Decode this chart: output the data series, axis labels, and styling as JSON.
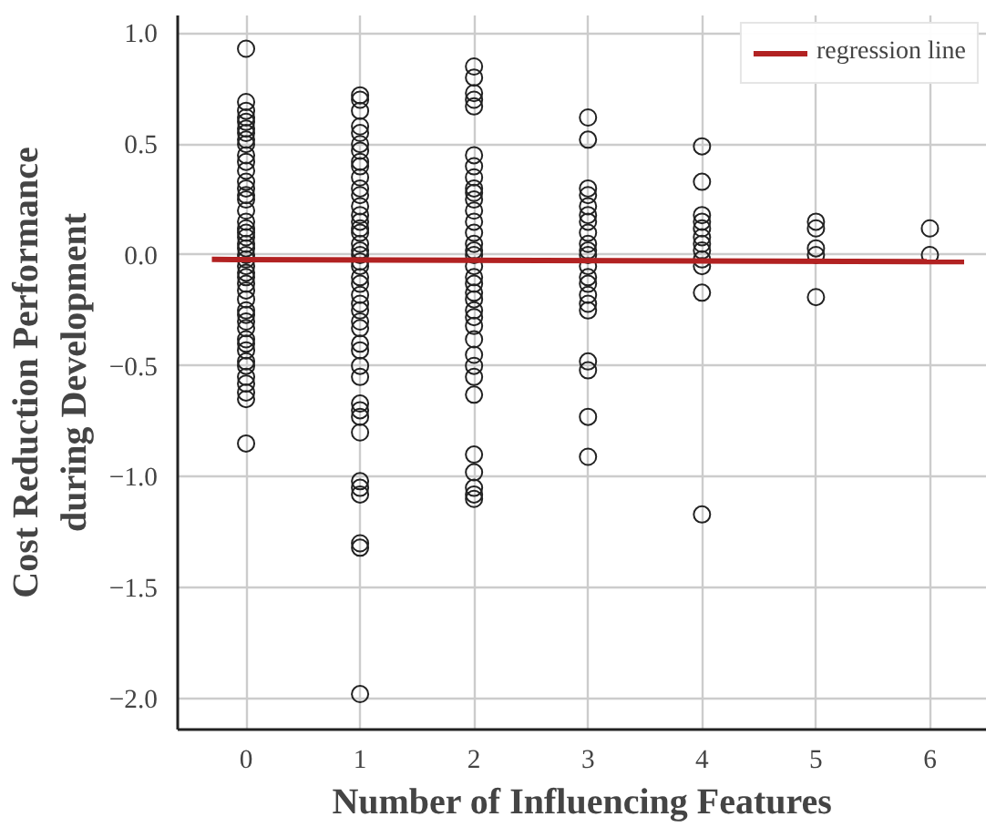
{
  "chart_data": {
    "type": "scatter",
    "xlabel": "Number of Influencing Features",
    "ylabel": "Cost Reduction Performance\nduring Development",
    "xlim": [
      -0.6,
      6.5
    ],
    "ylim": [
      -2.14,
      1.08
    ],
    "xticks": [
      0,
      1,
      2,
      3,
      4,
      5,
      6
    ],
    "yticks": [
      {
        "value": -2,
        "label": "−2.0"
      },
      {
        "value": -1.5,
        "label": "−1.5"
      },
      {
        "value": -1,
        "label": "−1.0"
      },
      {
        "value": -0.5,
        "label": "−0.5"
      },
      {
        "value": 0,
        "label": "0.0"
      },
      {
        "value": 0.5,
        "label": "0.5"
      },
      {
        "value": 1,
        "label": "1.0"
      }
    ],
    "grid": true,
    "legend": "top right",
    "series": [
      {
        "marker": "circle",
        "color": "#222222",
        "x": [
          0,
          0,
          0,
          0,
          0,
          0,
          0,
          0,
          0,
          0,
          0,
          0,
          0,
          0,
          0,
          0,
          0,
          0,
          0,
          0,
          0,
          0,
          0,
          0,
          0,
          0,
          0,
          0,
          0,
          0,
          0,
          0,
          0,
          0,
          0,
          0,
          0,
          0,
          0,
          0,
          0,
          0,
          0,
          0,
          0,
          1,
          1,
          1,
          1,
          1,
          1,
          1,
          1,
          1,
          1,
          1,
          1,
          1,
          1,
          1,
          1,
          1,
          1,
          1,
          1,
          1,
          1,
          1,
          1,
          1,
          1,
          1,
          1,
          1,
          1,
          1,
          1,
          1,
          1,
          1,
          1,
          1,
          1,
          1,
          1,
          1,
          1,
          1,
          2,
          2,
          2,
          2,
          2,
          2,
          2,
          2,
          2,
          2,
          2,
          2,
          2,
          2,
          2,
          2,
          2,
          2,
          2,
          2,
          2,
          2,
          2,
          2,
          2,
          2,
          2,
          2,
          2,
          2,
          2,
          2,
          2,
          2,
          2,
          3,
          3,
          3,
          3,
          3,
          3,
          3,
          3,
          3,
          3,
          3,
          3,
          3,
          3,
          3,
          3,
          3,
          3,
          3,
          3,
          3,
          4,
          4,
          4,
          4,
          4,
          4,
          4,
          4,
          4,
          4,
          4,
          4,
          5,
          5,
          5,
          5,
          5,
          6,
          6
        ],
        "values": [
          0.93,
          0.69,
          0.65,
          0.62,
          0.6,
          0.57,
          0.55,
          0.52,
          0.5,
          0.45,
          0.42,
          0.38,
          0.33,
          0.3,
          0.27,
          0.25,
          0.2,
          0.15,
          0.12,
          0.1,
          0.08,
          0.05,
          0.03,
          0.0,
          -0.02,
          -0.05,
          -0.08,
          -0.1,
          -0.13,
          -0.16,
          -0.2,
          -0.25,
          -0.27,
          -0.3,
          -0.33,
          -0.38,
          -0.4,
          -0.43,
          -0.48,
          -0.5,
          -0.55,
          -0.58,
          -0.62,
          -0.65,
          -0.85,
          0.72,
          0.7,
          0.65,
          0.58,
          0.55,
          0.5,
          0.47,
          0.42,
          0.4,
          0.35,
          0.3,
          0.27,
          0.22,
          0.18,
          0.15,
          0.12,
          0.1,
          0.05,
          0.02,
          0.0,
          -0.03,
          -0.05,
          -0.1,
          -0.13,
          -0.18,
          -0.22,
          -0.25,
          -0.3,
          -0.33,
          -0.4,
          -0.43,
          -0.5,
          -0.55,
          -0.67,
          -0.7,
          -0.73,
          -0.8,
          -1.02,
          -1.05,
          -1.08,
          -1.3,
          -1.32,
          -1.98,
          0.85,
          0.8,
          0.73,
          0.7,
          0.67,
          0.45,
          0.4,
          0.35,
          0.3,
          0.28,
          0.25,
          0.2,
          0.15,
          0.1,
          0.05,
          0.02,
          0.0,
          -0.05,
          -0.1,
          -0.13,
          -0.17,
          -0.2,
          -0.25,
          -0.28,
          -0.32,
          -0.38,
          -0.45,
          -0.5,
          -0.55,
          -0.63,
          -0.9,
          -0.98,
          -1.05,
          -1.08,
          -1.1,
          0.62,
          0.52,
          0.3,
          0.27,
          0.22,
          0.18,
          0.15,
          0.1,
          0.05,
          0.02,
          0.0,
          -0.05,
          -0.1,
          -0.13,
          -0.18,
          -0.22,
          -0.25,
          -0.48,
          -0.52,
          -0.73,
          -0.91,
          0.49,
          0.33,
          0.18,
          0.15,
          0.12,
          0.08,
          0.05,
          0.02,
          -0.02,
          -0.05,
          -0.17,
          -1.17,
          0.15,
          0.12,
          0.03,
          0.0,
          -0.19,
          0.12,
          0.0
        ]
      },
      {
        "type": "line",
        "name": "regression line",
        "color": "#b22222",
        "x": [
          -0.3,
          6.3
        ],
        "values": [
          -0.02,
          -0.03
        ]
      }
    ]
  }
}
